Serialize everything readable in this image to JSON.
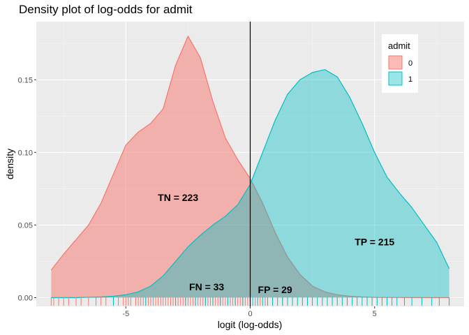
{
  "chart_data": {
    "type": "area",
    "title": "Density plot of log-odds for admit",
    "xlabel": "logit (log-odds)",
    "ylabel": "density",
    "xlim": [
      -8.6,
      8.6
    ],
    "ylim": [
      -0.006,
      0.19
    ],
    "x_ticks": [
      -5,
      0,
      5
    ],
    "x_tick_labels": [
      "-5",
      "0",
      "5"
    ],
    "y_ticks": [
      0.0,
      0.05,
      0.1,
      0.15
    ],
    "y_tick_labels": [
      "0.00",
      "0.05",
      "0.10",
      "0.15"
    ],
    "grid": true,
    "legend": {
      "title": "admit",
      "placement": "top-right"
    },
    "threshold_line_x": 0,
    "series": [
      {
        "name": "0",
        "color": "#F8766D",
        "fill": "rgba(248,118,109,0.5)",
        "x": [
          -8.0,
          -7.5,
          -7.0,
          -6.5,
          -6.0,
          -5.5,
          -5.0,
          -4.5,
          -4.0,
          -3.5,
          -3.0,
          -2.5,
          -2.0,
          -1.5,
          -1.0,
          -0.5,
          0.0,
          0.5,
          1.0,
          1.5,
          2.0,
          2.5,
          3.0,
          3.5,
          4.0,
          4.5,
          5.0,
          6.0,
          7.0,
          8.0
        ],
        "y": [
          0.019,
          0.03,
          0.04,
          0.05,
          0.065,
          0.085,
          0.105,
          0.114,
          0.12,
          0.13,
          0.16,
          0.18,
          0.165,
          0.135,
          0.11,
          0.095,
          0.082,
          0.065,
          0.045,
          0.028,
          0.016,
          0.008,
          0.004,
          0.002,
          0.001,
          0.0005,
          0.0002,
          0.0001,
          0.0,
          0.0
        ]
      },
      {
        "name": "1",
        "color": "#00BFC4",
        "fill": "rgba(0,191,196,0.4)",
        "x": [
          -8.0,
          -7.0,
          -6.0,
          -5.5,
          -5.0,
          -4.5,
          -4.0,
          -3.5,
          -3.0,
          -2.5,
          -2.0,
          -1.5,
          -1.0,
          -0.5,
          0.0,
          0.5,
          1.0,
          1.5,
          2.0,
          2.5,
          3.0,
          3.5,
          4.0,
          4.5,
          5.0,
          5.5,
          6.0,
          6.5,
          7.0,
          7.5,
          8.0
        ],
        "y": [
          0.0,
          0.0,
          0.0005,
          0.001,
          0.002,
          0.004,
          0.008,
          0.015,
          0.025,
          0.035,
          0.043,
          0.05,
          0.056,
          0.064,
          0.078,
          0.1,
          0.122,
          0.14,
          0.15,
          0.155,
          0.157,
          0.152,
          0.138,
          0.12,
          0.1,
          0.083,
          0.072,
          0.062,
          0.05,
          0.038,
          0.02
        ]
      }
    ],
    "rug": {
      "class0": [
        -8.0,
        -7.9,
        -7.7,
        -7.5,
        -7.3,
        -7.0,
        -6.8,
        -6.5,
        -6.2,
        -6.0,
        -5.8,
        -5.5,
        -5.3,
        -5.1,
        -5.0,
        -4.9,
        -4.8,
        -4.6,
        -4.5,
        -4.4,
        -4.3,
        -4.2,
        -4.1,
        -4.0,
        -3.9,
        -3.8,
        -3.7,
        -3.6,
        -3.5,
        -3.4,
        -3.3,
        -3.2,
        -3.1,
        -3.0,
        -2.9,
        -2.8,
        -2.7,
        -2.6,
        -2.5,
        -2.4,
        -2.3,
        -2.2,
        -2.1,
        -2.0,
        -1.9,
        -1.8,
        -1.7,
        -1.6,
        -1.5,
        -1.4,
        -1.3,
        -1.2,
        -1.1,
        -1.0,
        -0.9,
        -0.8,
        -0.7,
        -0.6,
        -0.5,
        -0.4,
        -0.3,
        -0.2,
        -0.1,
        0.2,
        0.4,
        0.6,
        0.9,
        1.3
      ],
      "class1": [
        -5.5,
        -4.2,
        -3.0,
        -2.6,
        -2.2,
        -1.8,
        -1.5,
        -1.2,
        -0.9,
        -0.6,
        -0.3,
        0.1,
        0.3,
        0.5,
        0.7,
        0.9,
        1.1,
        1.3,
        1.5,
        1.7,
        1.9,
        2.1,
        2.3,
        2.5,
        2.7,
        2.9,
        3.1,
        3.3,
        3.5,
        3.7,
        3.9,
        4.1,
        4.3,
        4.5,
        4.7,
        4.9,
        5.1,
        5.3,
        5.5,
        5.7,
        5.9,
        6.2,
        6.5,
        6.9,
        7.3,
        7.6,
        8.0
      ]
    },
    "annotations": [
      {
        "text": "TN = 223",
        "x": -2.9,
        "y": 0.069
      },
      {
        "text": "FN = 33",
        "x": -1.75,
        "y": 0.0075
      },
      {
        "text": "FP = 29",
        "x": 1.0,
        "y": 0.0055
      },
      {
        "text": "TP = 215",
        "x": 5.0,
        "y": 0.0385
      }
    ]
  }
}
